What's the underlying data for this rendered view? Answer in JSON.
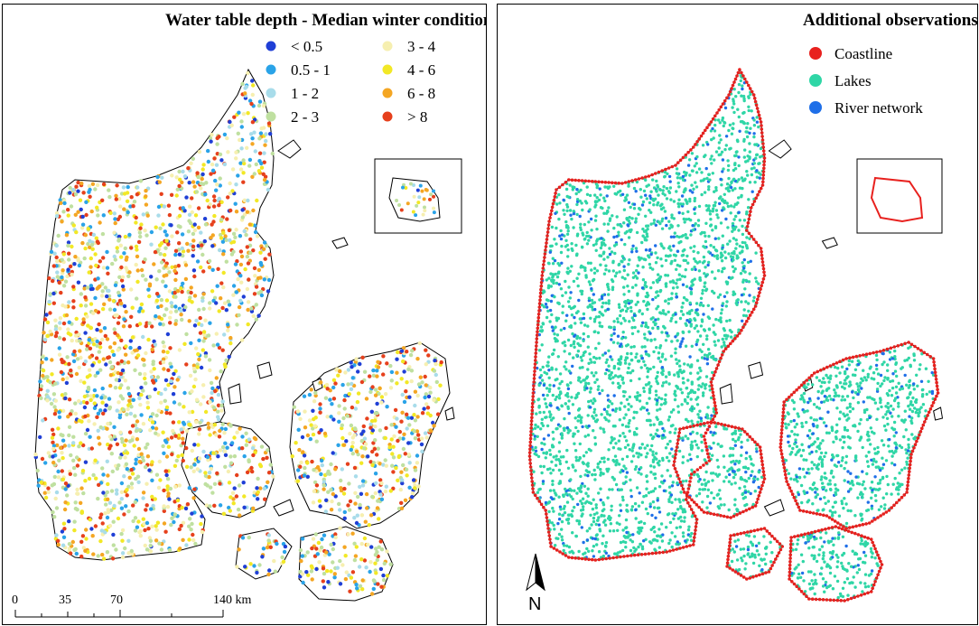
{
  "left_map": {
    "title": "Water table depth - Median winter condition",
    "legend": [
      {
        "label": "< 0.5",
        "color": "#1f3fd6"
      },
      {
        "label": "0.5 - 1",
        "color": "#2aa3e8"
      },
      {
        "label": "1 - 2",
        "color": "#a8dcea"
      },
      {
        "label": "2 - 3",
        "color": "#bfe0a0"
      },
      {
        "label": "3 - 4",
        "color": "#f6efb0"
      },
      {
        "label": "4 - 6",
        "color": "#f2e826"
      },
      {
        "label": "6 - 8",
        "color": "#f4a623"
      },
      {
        "label": "> 8",
        "color": "#e6401c"
      }
    ],
    "scale_bar": {
      "ticks": [
        "0",
        "35",
        "70",
        "140 km"
      ]
    }
  },
  "right_map": {
    "title": "Additional observations",
    "legend": [
      {
        "label": "Coastline",
        "color": "#e8211e"
      },
      {
        "label": "Lakes",
        "color": "#2fd6a6"
      },
      {
        "label": "River network",
        "color": "#1f6fe8"
      }
    ],
    "north_arrow": {
      "label": "N"
    }
  }
}
